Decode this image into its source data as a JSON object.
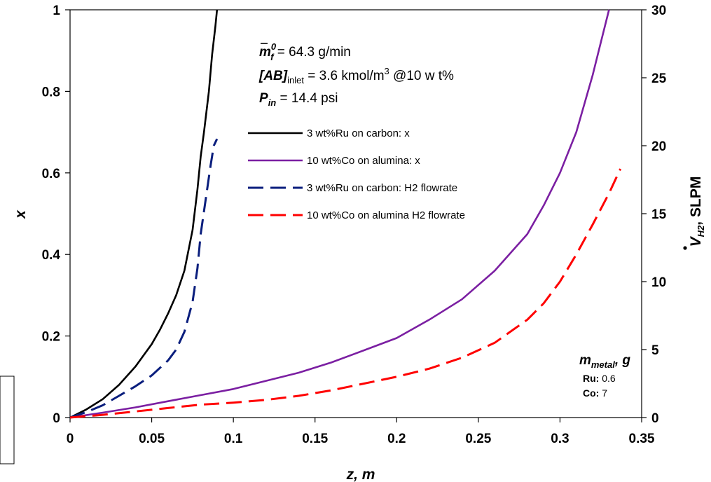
{
  "chart_data": {
    "type": "line",
    "title": "",
    "xlabel": "z,   m",
    "ylabel": "x",
    "y2label": "V_H2,  SLPM",
    "xlim": [
      0,
      0.35
    ],
    "ylim": [
      0,
      1.0
    ],
    "y2lim": [
      0,
      30
    ],
    "x_ticks": [
      "0",
      "0.05",
      "0.1",
      "0.15",
      "0.2",
      "0.25",
      "0.3",
      "0.35"
    ],
    "y_ticks": [
      "0",
      "0.2",
      "0.4",
      "0.6",
      "0.8",
      "1"
    ],
    "y2_ticks": [
      "0",
      "5",
      "10",
      "15",
      "20",
      "25",
      "30"
    ],
    "grid": false,
    "legend_position": "top-center",
    "series": [
      {
        "name": "3 wt%Ru on carbon:  x",
        "axis": "left",
        "color": "#000000",
        "style": "solid",
        "points": [
          [
            0,
            0
          ],
          [
            0.01,
            0.02
          ],
          [
            0.02,
            0.045
          ],
          [
            0.03,
            0.08
          ],
          [
            0.04,
            0.125
          ],
          [
            0.05,
            0.18
          ],
          [
            0.055,
            0.215
          ],
          [
            0.06,
            0.255
          ],
          [
            0.065,
            0.3
          ],
          [
            0.07,
            0.36
          ],
          [
            0.075,
            0.46
          ],
          [
            0.078,
            0.56
          ],
          [
            0.08,
            0.64
          ],
          [
            0.082,
            0.7
          ],
          [
            0.085,
            0.8
          ],
          [
            0.087,
            0.89
          ],
          [
            0.089,
            0.96
          ],
          [
            0.09,
            1.0
          ]
        ]
      },
      {
        "name": "10 wt%Co on alumina:  x",
        "axis": "left",
        "color": "#7B1FA2",
        "style": "solid",
        "points": [
          [
            0,
            0
          ],
          [
            0.02,
            0.012
          ],
          [
            0.04,
            0.025
          ],
          [
            0.06,
            0.04
          ],
          [
            0.08,
            0.055
          ],
          [
            0.1,
            0.07
          ],
          [
            0.12,
            0.09
          ],
          [
            0.14,
            0.11
          ],
          [
            0.16,
            0.135
          ],
          [
            0.18,
            0.165
          ],
          [
            0.2,
            0.195
          ],
          [
            0.22,
            0.24
          ],
          [
            0.24,
            0.29
          ],
          [
            0.26,
            0.36
          ],
          [
            0.28,
            0.45
          ],
          [
            0.29,
            0.52
          ],
          [
            0.3,
            0.6
          ],
          [
            0.31,
            0.7
          ],
          [
            0.32,
            0.84
          ],
          [
            0.325,
            0.92
          ],
          [
            0.33,
            1.0
          ]
        ]
      },
      {
        "name": "3 wt%Ru on carbon: H2 flowrate",
        "axis": "right",
        "color": "#0A1E7D",
        "style": "dashed",
        "points": [
          [
            0,
            0
          ],
          [
            0.01,
            0.4
          ],
          [
            0.02,
            0.9
          ],
          [
            0.03,
            1.6
          ],
          [
            0.04,
            2.3
          ],
          [
            0.05,
            3.1
          ],
          [
            0.06,
            4.2
          ],
          [
            0.065,
            5.0
          ],
          [
            0.07,
            6.3
          ],
          [
            0.075,
            8.5
          ],
          [
            0.078,
            11.0
          ],
          [
            0.08,
            13.5
          ],
          [
            0.083,
            16.0
          ],
          [
            0.086,
            18.5
          ],
          [
            0.088,
            20.0
          ],
          [
            0.09,
            20.5
          ]
        ]
      },
      {
        "name": "10 wt%Co on alumina H2 flowrate",
        "axis": "right",
        "color": "#FF0000",
        "style": "dashed",
        "points": [
          [
            0,
            0
          ],
          [
            0.02,
            0.2
          ],
          [
            0.04,
            0.45
          ],
          [
            0.06,
            0.7
          ],
          [
            0.08,
            0.95
          ],
          [
            0.1,
            1.1
          ],
          [
            0.12,
            1.3
          ],
          [
            0.14,
            1.6
          ],
          [
            0.16,
            2.0
          ],
          [
            0.18,
            2.5
          ],
          [
            0.2,
            3.0
          ],
          [
            0.22,
            3.6
          ],
          [
            0.24,
            4.4
          ],
          [
            0.26,
            5.5
          ],
          [
            0.28,
            7.2
          ],
          [
            0.29,
            8.4
          ],
          [
            0.3,
            10.0
          ],
          [
            0.31,
            12.0
          ],
          [
            0.32,
            14.2
          ],
          [
            0.33,
            16.5
          ],
          [
            0.337,
            18.3
          ]
        ]
      }
    ]
  },
  "annotations": {
    "mf_symbol": "m",
    "mf_sub": "f",
    "mf_sup": "0",
    "mf_value": " = 64.3 g/min",
    "ab_label": "[AB]",
    "ab_sub": "inlet",
    "ab_value": " = 3.6 kmol/m",
    "ab_sup": "3",
    "ab_rest": " @10 w t%",
    "p_label": "P",
    "p_sub": "in",
    "p_value": " = 14.4 psi"
  },
  "metal_mass": {
    "title_m": "m",
    "title_sub": "metal",
    "title_unit": ",  g",
    "rows": [
      {
        "label": "Ru:",
        "value": " 0.6"
      },
      {
        "label": "Co:",
        "value": " 7"
      }
    ]
  }
}
